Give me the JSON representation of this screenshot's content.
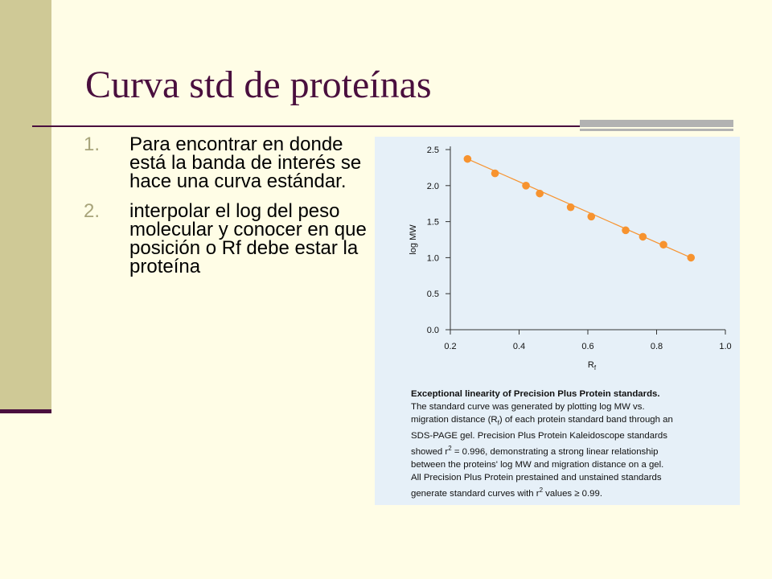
{
  "slide": {
    "title": "Curva std de proteínas",
    "bullets": [
      {
        "num": "1.",
        "text": "Para encontrar en donde está la banda de interés se hace una curva estándar."
      },
      {
        "num": "2.",
        "text": "interpolar el log del peso molecular y conocer en que posición o Rf debe estar la proteína"
      }
    ],
    "colors": {
      "background": "#fffde6",
      "accent_bar": "#cfc996",
      "title": "#4a0f3e",
      "figure_bg": "#e6f0f8",
      "point": "#f7932f",
      "line": "#f7932f"
    }
  },
  "chart_data": {
    "type": "scatter",
    "title": "",
    "xlabel": "R",
    "xlabel_sub": "f",
    "ylabel": "log MW",
    "xlim": [
      0.2,
      1.0
    ],
    "ylim": [
      0.0,
      2.5
    ],
    "xticks": [
      0.2,
      0.4,
      0.6,
      0.8,
      1.0
    ],
    "xtick_labels": [
      "0.2",
      "0.4",
      "0.6",
      "0.8",
      "1.0"
    ],
    "yticks": [
      0.0,
      0.5,
      1.0,
      1.5,
      2.0,
      2.5
    ],
    "ytick_labels": [
      "0.0",
      "0.5",
      "1.0",
      "1.5",
      "2.0",
      "2.5"
    ],
    "grid": false,
    "series": [
      {
        "x": [
          0.25,
          0.33,
          0.42,
          0.46,
          0.55,
          0.61,
          0.71,
          0.76,
          0.82,
          0.9
        ],
        "y": [
          2.37,
          2.17,
          2.0,
          1.89,
          1.7,
          1.57,
          1.38,
          1.29,
          1.18,
          1.0
        ]
      }
    ],
    "fit_line": {
      "x": [
        0.25,
        0.9
      ],
      "y": [
        2.37,
        1.0
      ]
    }
  },
  "caption": {
    "title": "Exceptional linearity of Precision Plus Protein standards.",
    "lines": [
      "The standard curve was generated by plotting log MW vs.",
      "migration distance (R",
      ") of each protein standard band through an",
      "SDS-PAGE gel. Precision Plus Protein Kaleidoscope standards",
      "showed r",
      " = 0.996, demonstrating a strong linear relationship",
      "between the proteins' log MW and migration distance on a gel.",
      "All Precision Plus Protein prestained and unstained standards",
      "generate standard curves with r",
      " values ≥ 0.99."
    ],
    "sub_f": "f",
    "sup_2": "2"
  }
}
